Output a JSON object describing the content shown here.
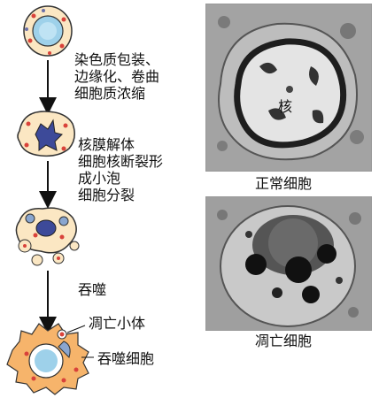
{
  "stages": [
    {
      "lines": [
        "染色质包装、",
        "边缘化、卷曲",
        "细胞质浓缩"
      ]
    },
    {
      "lines": [
        "核膜解体",
        "细胞核断裂形",
        "成小泡",
        "细胞分裂"
      ]
    },
    {
      "lines": [
        "吞噬"
      ]
    }
  ],
  "labels": {
    "apoptotic_body": "凋亡小体",
    "phagocyte": "吞噬细胞",
    "nucleus": "核",
    "normal_cell": "正常细胞",
    "apoptotic_cell": "凋亡细胞"
  }
}
